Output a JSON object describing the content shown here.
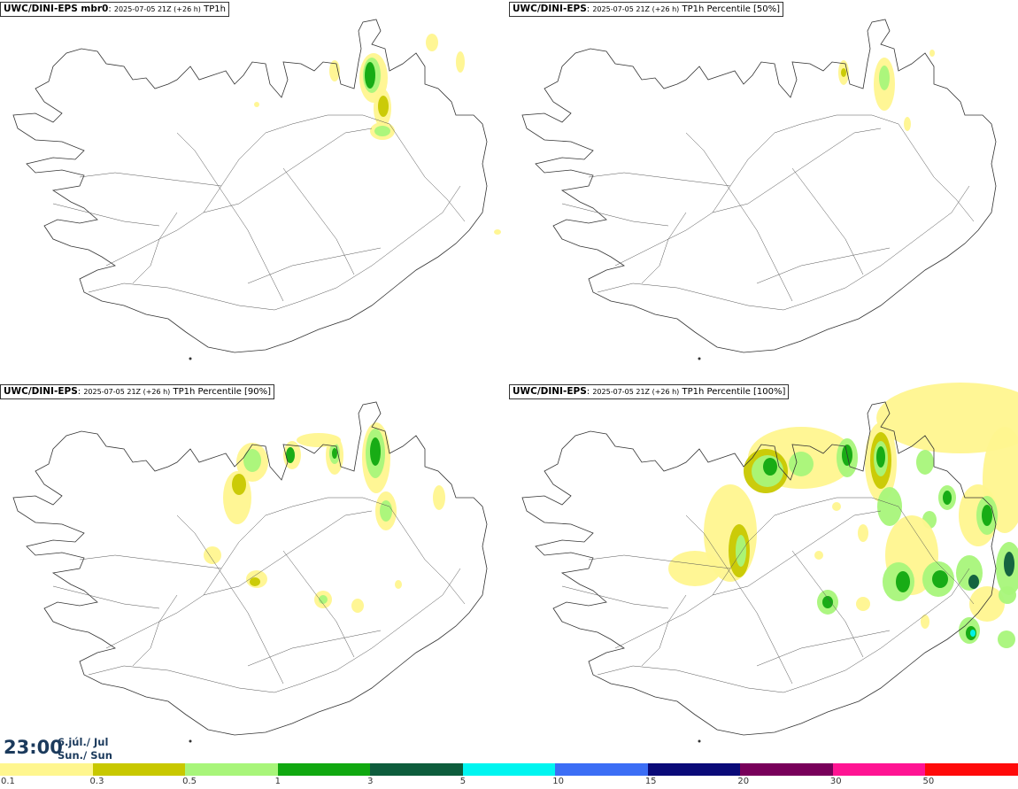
{
  "panels": [
    {
      "model": "UWC/DINI-EPS mbr0",
      "run": "2025-07-05 21Z (+26 h)",
      "field": "TP1h"
    },
    {
      "model": "UWC/DINI-EPS",
      "run": "2025-07-05 21Z (+26 h)",
      "field": "TP1h Percentile [50%]"
    },
    {
      "model": "UWC/DINI-EPS",
      "run": "2025-07-05 21Z (+26 h)",
      "field": "TP1h Percentile [90%]"
    },
    {
      "model": "UWC/DINI-EPS",
      "run": "2025-07-05 21Z (+26 h)",
      "field": "TP1h Percentile [100%]"
    }
  ],
  "valid_time": {
    "time": "23:00",
    "date_line1": "6.júl./ Jul",
    "date_line2": "Sun./ Sun"
  },
  "legend": {
    "labels": [
      "0.1",
      "0.3",
      "0.5",
      "1",
      "3",
      "5",
      "10",
      "15",
      "20",
      "30",
      "50"
    ],
    "colors": [
      "#fff68f",
      "#c8c800",
      "#a8f57a",
      "#10a810",
      "#0d5c3c",
      "#00f5f0",
      "#3c6ef5",
      "#0a0a78",
      "#78005a",
      "#ff1493",
      "#ff0a0a"
    ]
  }
}
